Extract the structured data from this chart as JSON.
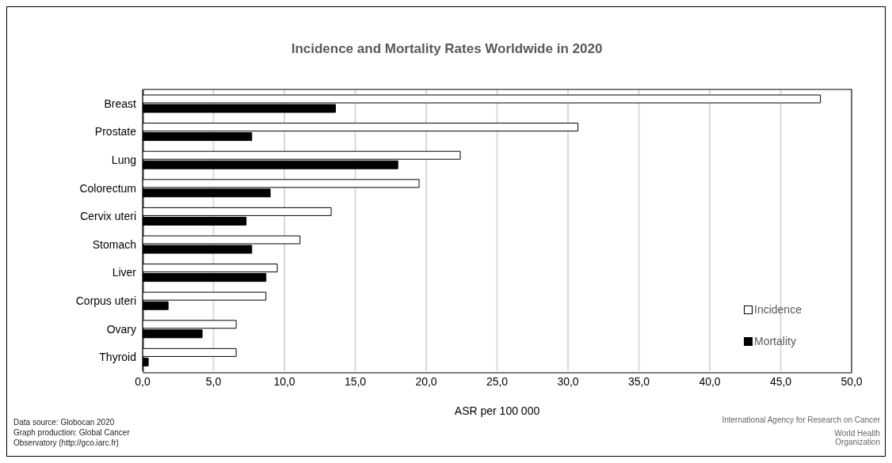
{
  "chart_data": {
    "type": "bar",
    "orientation": "horizontal",
    "title": "Incidence and Mortality Rates Worldwide in 2020",
    "xlabel": "ASR per 100 000",
    "categories": [
      "Breast",
      "Prostate",
      "Lung",
      "Colorectum",
      "Cervix uteri",
      "Stomach",
      "Liver",
      "Corpus uteri",
      "Ovary",
      "Thyroid"
    ],
    "series": [
      {
        "name": "Incidence",
        "color": "#ffffff",
        "values": [
          47.8,
          30.7,
          22.4,
          19.5,
          13.3,
          11.1,
          9.5,
          8.7,
          6.6,
          6.6
        ]
      },
      {
        "name": "Mortality",
        "color": "#000000",
        "values": [
          13.6,
          7.7,
          18.0,
          9.0,
          7.3,
          7.7,
          8.7,
          1.8,
          4.2,
          0.4
        ]
      }
    ],
    "xlim": [
      0,
      50
    ],
    "xticks": [
      {
        "value": 0,
        "label": "0,0"
      },
      {
        "value": 5,
        "label": "5,0"
      },
      {
        "value": 10,
        "label": "10,0"
      },
      {
        "value": 15,
        "label": "15,0"
      },
      {
        "value": 20,
        "label": "20,0"
      },
      {
        "value": 25,
        "label": "25,0"
      },
      {
        "value": 30,
        "label": "30,0"
      },
      {
        "value": 35,
        "label": "35,0"
      },
      {
        "value": 40,
        "label": "40,0"
      },
      {
        "value": 45,
        "label": "45,0"
      },
      {
        "value": 50,
        "label": "50,0"
      }
    ],
    "grid": "x",
    "legend": "bottom right",
    "annotations": [
      "Data source: Globocan 2020",
      "Graph production: Global Cancer Observatory (http://gco.iarc.fr)",
      "International Agency for Research on Cancer",
      "World Health Organization"
    ]
  }
}
